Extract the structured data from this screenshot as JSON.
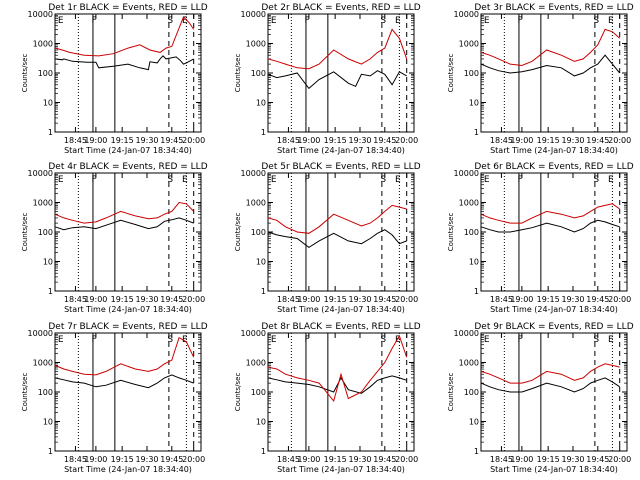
{
  "chart_data": [
    {
      "type": "line",
      "title": "Det 1r BLACK = Events, RED = LLD",
      "ylabel": "Counts/sec",
      "xlabel": "Start Time (24-Jan-07 18:34:40)",
      "x_ticks": [
        "18:45",
        "19:00",
        "19:15",
        "19:30",
        "19:45",
        "20:00"
      ],
      "y_ticks": [
        "1",
        "10",
        "100",
        "1000",
        "10000"
      ],
      "ylim": [
        1,
        10000
      ],
      "y_scale": "log",
      "markers": [
        "E",
        "F",
        "S",
        "E"
      ],
      "series": [
        {
          "color": "#000000",
          "x": [
            0,
            0.05,
            0.06,
            0.12,
            0.22,
            0.28,
            0.3,
            0.4,
            0.5,
            0.58,
            0.64,
            0.65,
            0.7,
            0.72,
            0.74,
            0.76,
            0.8,
            0.83,
            0.86,
            0.88,
            0.9,
            0.95
          ],
          "y": [
            300,
            280,
            300,
            250,
            230,
            230,
            150,
            170,
            200,
            150,
            130,
            240,
            220,
            300,
            380,
            300,
            330,
            350,
            260,
            200,
            220,
            300
          ]
        },
        {
          "color": "#cc0000",
          "x": [
            0,
            0.05,
            0.1,
            0.2,
            0.3,
            0.4,
            0.5,
            0.58,
            0.65,
            0.72,
            0.76,
            0.8,
            0.84,
            0.88,
            0.92,
            0.95
          ],
          "y": [
            700,
            600,
            500,
            400,
            380,
            450,
            700,
            900,
            600,
            500,
            700,
            800,
            2500,
            8000,
            5000,
            3000
          ]
        }
      ]
    },
    {
      "type": "line",
      "title": "Det 2r BLACK = Events, RED = LLD",
      "ylabel": "Counts/sec",
      "xlabel": "Start Time (24-Jan-07 18:34:40)",
      "x_ticks": [
        "18:45",
        "19:00",
        "19:15",
        "19:30",
        "19:45",
        "20:00"
      ],
      "y_ticks": [
        "1",
        "10",
        "100",
        "1000",
        "10000"
      ],
      "ylim": [
        1,
        10000
      ],
      "y_scale": "log",
      "markers": [
        "E",
        "F",
        "S",
        "E"
      ],
      "series": [
        {
          "color": "#000000",
          "x": [
            0,
            0.06,
            0.12,
            0.2,
            0.28,
            0.35,
            0.45,
            0.55,
            0.6,
            0.64,
            0.7,
            0.75,
            0.8,
            0.85,
            0.9,
            0.95
          ],
          "y": [
            90,
            70,
            80,
            100,
            30,
            60,
            110,
            45,
            35,
            90,
            80,
            120,
            90,
            40,
            110,
            80
          ]
        },
        {
          "color": "#cc0000",
          "x": [
            0,
            0.06,
            0.12,
            0.2,
            0.28,
            0.35,
            0.45,
            0.55,
            0.64,
            0.7,
            0.75,
            0.8,
            0.85,
            0.9,
            0.95
          ],
          "y": [
            300,
            250,
            200,
            150,
            140,
            200,
            600,
            300,
            200,
            300,
            500,
            700,
            3000,
            1500,
            300
          ]
        }
      ]
    },
    {
      "type": "line",
      "title": "Det 3r BLACK = Events, RED = LLD",
      "ylabel": "Counts/sec",
      "xlabel": "Start Time (24-Jan-07 18:34:40)",
      "x_ticks": [
        "18:45",
        "19:00",
        "19:15",
        "19:30",
        "19:45",
        "20:00"
      ],
      "y_ticks": [
        "1",
        "10",
        "100",
        "1000",
        "10000"
      ],
      "ylim": [
        1,
        10000
      ],
      "y_scale": "log",
      "markers": [
        "E",
        "F",
        "S",
        "E"
      ],
      "series": [
        {
          "color": "#000000",
          "x": [
            0,
            0.06,
            0.12,
            0.2,
            0.28,
            0.35,
            0.45,
            0.55,
            0.64,
            0.7,
            0.75,
            0.8,
            0.85,
            0.9,
            0.95
          ],
          "y": [
            200,
            150,
            120,
            100,
            110,
            130,
            180,
            150,
            80,
            100,
            150,
            200,
            400,
            200,
            100
          ]
        },
        {
          "color": "#cc0000",
          "x": [
            0,
            0.06,
            0.12,
            0.2,
            0.28,
            0.35,
            0.45,
            0.55,
            0.64,
            0.7,
            0.75,
            0.8,
            0.85,
            0.9,
            0.95
          ],
          "y": [
            500,
            400,
            300,
            200,
            180,
            250,
            600,
            400,
            250,
            300,
            500,
            900,
            3000,
            2500,
            1500
          ]
        }
      ]
    },
    {
      "type": "line",
      "title": "Det 4r BLACK = Events, RED = LLD",
      "ylabel": "Counts/sec",
      "xlabel": "Start Time (24-Jan-07 18:34:40)",
      "x_ticks": [
        "18:45",
        "19:00",
        "19:15",
        "19:30",
        "19:45",
        "20:00"
      ],
      "y_ticks": [
        "1",
        "10",
        "100",
        "1000",
        "10000"
      ],
      "ylim": [
        1,
        10000
      ],
      "y_scale": "log",
      "markers": [
        "E",
        "F",
        "S",
        "E"
      ],
      "series": [
        {
          "color": "#000000",
          "x": [
            0,
            0.06,
            0.12,
            0.2,
            0.28,
            0.35,
            0.45,
            0.55,
            0.64,
            0.7,
            0.75,
            0.8,
            0.85,
            0.9,
            0.95
          ],
          "y": [
            150,
            120,
            140,
            150,
            130,
            170,
            250,
            180,
            130,
            150,
            230,
            260,
            300,
            250,
            200
          ]
        },
        {
          "color": "#cc0000",
          "x": [
            0,
            0.06,
            0.12,
            0.2,
            0.28,
            0.35,
            0.45,
            0.55,
            0.64,
            0.7,
            0.75,
            0.8,
            0.85,
            0.9,
            0.95
          ],
          "y": [
            400,
            300,
            250,
            200,
            220,
            300,
            500,
            350,
            280,
            300,
            400,
            500,
            1000,
            900,
            500
          ]
        }
      ]
    },
    {
      "type": "line",
      "title": "Det 5r BLACK = Events, RED = LLD",
      "ylabel": "Counts/sec",
      "xlabel": "Start Time (24-Jan-07 18:34:40)",
      "x_ticks": [
        "18:45",
        "19:00",
        "19:15",
        "19:30",
        "19:45",
        "20:00"
      ],
      "y_ticks": [
        "1",
        "10",
        "100",
        "1000",
        "10000"
      ],
      "ylim": [
        1,
        10000
      ],
      "y_scale": "log",
      "markers": [
        "E",
        "F",
        "S",
        "E"
      ],
      "series": [
        {
          "color": "#000000",
          "x": [
            0,
            0.06,
            0.12,
            0.2,
            0.28,
            0.35,
            0.45,
            0.55,
            0.64,
            0.7,
            0.75,
            0.8,
            0.85,
            0.9,
            0.95
          ],
          "y": [
            100,
            80,
            70,
            60,
            30,
            50,
            90,
            50,
            40,
            60,
            90,
            120,
            80,
            40,
            50
          ]
        },
        {
          "color": "#cc0000",
          "x": [
            0,
            0.06,
            0.12,
            0.2,
            0.28,
            0.35,
            0.45,
            0.55,
            0.64,
            0.7,
            0.75,
            0.8,
            0.85,
            0.9,
            0.95
          ],
          "y": [
            300,
            250,
            150,
            100,
            90,
            150,
            400,
            250,
            160,
            200,
            300,
            500,
            800,
            700,
            600
          ]
        }
      ]
    },
    {
      "type": "line",
      "title": "Det 6r BLACK = Events, RED = LLD",
      "ylabel": "Counts/sec",
      "xlabel": "Start Time (24-Jan-07 18:34:40)",
      "x_ticks": [
        "18:45",
        "19:00",
        "19:15",
        "19:30",
        "19:45",
        "20:00"
      ],
      "y_ticks": [
        "1",
        "10",
        "100",
        "1000",
        "10000"
      ],
      "ylim": [
        1,
        10000
      ],
      "y_scale": "log",
      "markers": [
        "E",
        "F",
        "S",
        "E"
      ],
      "series": [
        {
          "color": "#000000",
          "x": [
            0,
            0.06,
            0.12,
            0.2,
            0.28,
            0.35,
            0.45,
            0.55,
            0.64,
            0.7,
            0.75,
            0.8,
            0.85,
            0.9,
            0.95
          ],
          "y": [
            150,
            120,
            100,
            100,
            120,
            140,
            200,
            150,
            100,
            130,
            200,
            250,
            220,
            180,
            150
          ]
        },
        {
          "color": "#cc0000",
          "x": [
            0,
            0.06,
            0.12,
            0.2,
            0.28,
            0.35,
            0.45,
            0.55,
            0.64,
            0.7,
            0.75,
            0.8,
            0.85,
            0.9,
            0.95
          ],
          "y": [
            400,
            300,
            250,
            200,
            200,
            300,
            500,
            400,
            300,
            350,
            500,
            700,
            800,
            900,
            600
          ]
        }
      ]
    },
    {
      "type": "line",
      "title": "Det 7r BLACK = Events, RED = LLD",
      "ylabel": "Counts/sec",
      "xlabel": "Start Time (24-Jan-07 18:34:40)",
      "x_ticks": [
        "18:45",
        "19:00",
        "19:15",
        "19:30",
        "19:45",
        "20:00"
      ],
      "y_ticks": [
        "1",
        "10",
        "100",
        "1000",
        "10000"
      ],
      "ylim": [
        1,
        10000
      ],
      "y_scale": "log",
      "markers": [
        "E",
        "F",
        "S",
        "E"
      ],
      "series": [
        {
          "color": "#000000",
          "x": [
            0,
            0.06,
            0.12,
            0.2,
            0.28,
            0.35,
            0.45,
            0.55,
            0.64,
            0.7,
            0.75,
            0.8,
            0.85,
            0.9,
            0.95
          ],
          "y": [
            300,
            260,
            220,
            200,
            150,
            170,
            250,
            180,
            140,
            200,
            300,
            380,
            300,
            250,
            200
          ]
        },
        {
          "color": "#cc0000",
          "x": [
            0,
            0.06,
            0.12,
            0.2,
            0.28,
            0.35,
            0.45,
            0.55,
            0.64,
            0.7,
            0.75,
            0.8,
            0.85,
            0.9,
            0.95
          ],
          "y": [
            800,
            600,
            500,
            400,
            380,
            500,
            900,
            600,
            500,
            600,
            900,
            1200,
            7000,
            5000,
            1500
          ]
        }
      ]
    },
    {
      "type": "line",
      "title": "Det 8r BLACK = Events, RED = LLD",
      "ylabel": "Counts/sec",
      "xlabel": "Start Time (24-Jan-07 18:34:40)",
      "x_ticks": [
        "18:45",
        "19:00",
        "19:15",
        "19:30",
        "19:45",
        "20:00"
      ],
      "y_ticks": [
        "1",
        "10",
        "100",
        "1000",
        "10000"
      ],
      "ylim": [
        1,
        10000
      ],
      "y_scale": "log",
      "markers": [
        "E",
        "F",
        "S",
        "E"
      ],
      "series": [
        {
          "color": "#000000",
          "x": [
            0,
            0.06,
            0.12,
            0.2,
            0.28,
            0.35,
            0.45,
            0.5,
            0.55,
            0.64,
            0.7,
            0.75,
            0.8,
            0.85,
            0.9,
            0.95
          ],
          "y": [
            300,
            260,
            220,
            200,
            180,
            150,
            100,
            300,
            120,
            90,
            150,
            250,
            300,
            350,
            300,
            250
          ]
        },
        {
          "color": "#cc0000",
          "x": [
            0,
            0.06,
            0.12,
            0.2,
            0.28,
            0.35,
            0.45,
            0.5,
            0.55,
            0.64,
            0.7,
            0.75,
            0.8,
            0.85,
            0.9,
            0.95
          ],
          "y": [
            700,
            600,
            400,
            300,
            250,
            200,
            50,
            400,
            60,
            100,
            250,
            500,
            1000,
            3000,
            8000,
            1500
          ]
        }
      ]
    },
    {
      "type": "line",
      "title": "Det 9r BLACK = Events, RED = LLD",
      "ylabel": "Counts/sec",
      "xlabel": "Start Time (24-Jan-07 18:34:40)",
      "x_ticks": [
        "18:45",
        "19:00",
        "19:15",
        "19:30",
        "19:45",
        "20:00"
      ],
      "y_ticks": [
        "1",
        "10",
        "100",
        "1000",
        "10000"
      ],
      "ylim": [
        1,
        10000
      ],
      "y_scale": "log",
      "markers": [
        "E",
        "F",
        "S",
        "E"
      ],
      "series": [
        {
          "color": "#000000",
          "x": [
            0,
            0.06,
            0.12,
            0.2,
            0.28,
            0.35,
            0.45,
            0.55,
            0.64,
            0.7,
            0.75,
            0.8,
            0.85,
            0.9,
            0.95
          ],
          "y": [
            200,
            150,
            120,
            100,
            100,
            130,
            200,
            150,
            100,
            130,
            200,
            250,
            300,
            220,
            150
          ]
        },
        {
          "color": "#cc0000",
          "x": [
            0,
            0.06,
            0.12,
            0.2,
            0.28,
            0.35,
            0.45,
            0.55,
            0.64,
            0.7,
            0.75,
            0.8,
            0.85,
            0.9,
            0.95
          ],
          "y": [
            500,
            400,
            300,
            200,
            200,
            250,
            500,
            400,
            250,
            300,
            500,
            700,
            900,
            800,
            700
          ]
        }
      ]
    }
  ]
}
